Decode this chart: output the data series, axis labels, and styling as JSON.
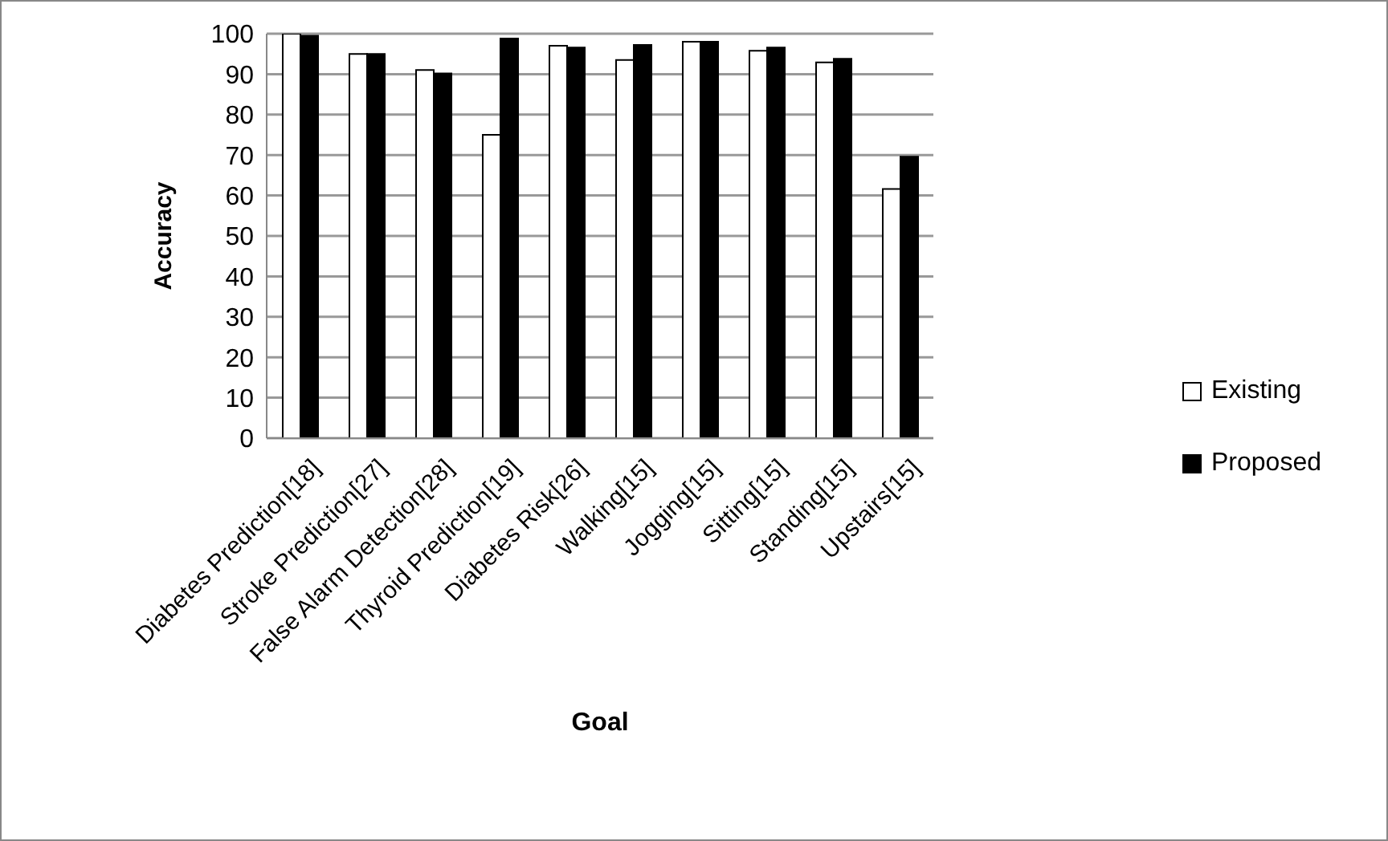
{
  "chart_data": {
    "type": "bar",
    "xlabel": "Goal",
    "ylabel": "Accuracy",
    "categories": [
      "Diabetes Prediction[18]",
      "Stroke Prediction[27]",
      "False Alarm Detection[28]",
      "Thyroid Prediction[19]",
      "Diabetes Risk[26]",
      "Walking[15]",
      "Jogging[15]",
      "Sitting[15]",
      "Standing[15]",
      "Upstairs[15]"
    ],
    "series": [
      {
        "name": "Existing",
        "color": "#ffffff",
        "values": [
          100,
          95,
          91,
          75,
          97,
          93.5,
          98,
          95.8,
          92.9,
          61.6
        ]
      },
      {
        "name": "Proposed",
        "color": "#000000",
        "values": [
          99.5,
          95,
          90.2,
          98.8,
          96.6,
          97.2,
          98,
          96.6,
          93.8,
          69.6
        ]
      }
    ],
    "ylim": [
      0,
      100
    ],
    "yticks": [
      0,
      10,
      20,
      30,
      40,
      50,
      60,
      70,
      80,
      90,
      100
    ],
    "grid": "y",
    "legend": "right"
  }
}
